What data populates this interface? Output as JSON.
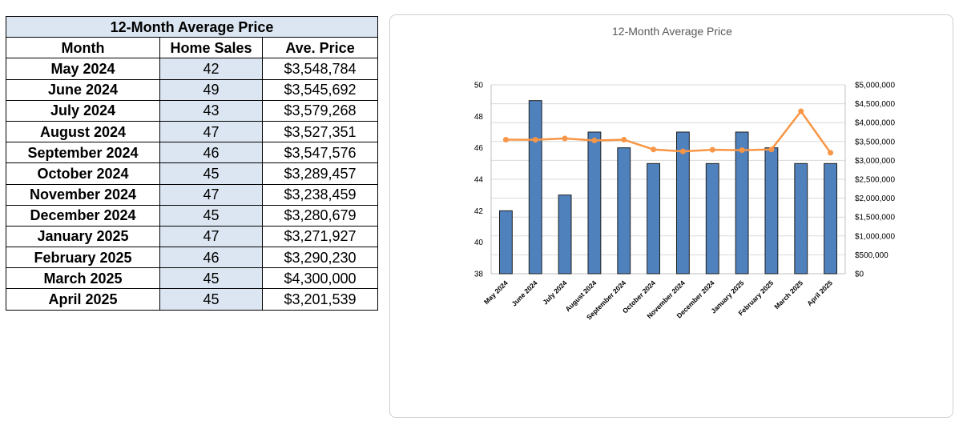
{
  "table": {
    "title": "12-Month Average Price",
    "headers": [
      "Month",
      "Home Sales",
      "Ave. Price"
    ],
    "rows": [
      {
        "month": "May 2024",
        "sales": "42",
        "price": "$3,548,784"
      },
      {
        "month": "June 2024",
        "sales": "49",
        "price": "$3,545,692"
      },
      {
        "month": "July 2024",
        "sales": "43",
        "price": "$3,579,268"
      },
      {
        "month": "August 2024",
        "sales": "47",
        "price": "$3,527,351"
      },
      {
        "month": "September 2024",
        "sales": "46",
        "price": "$3,547,576"
      },
      {
        "month": "October 2024",
        "sales": "45",
        "price": "$3,289,457"
      },
      {
        "month": "November 2024",
        "sales": "47",
        "price": "$3,238,459"
      },
      {
        "month": "December 2024",
        "sales": "45",
        "price": "$3,280,679"
      },
      {
        "month": "January 2025",
        "sales": "47",
        "price": "$3,271,927"
      },
      {
        "month": "February 2025",
        "sales": "46",
        "price": "$3,290,230"
      },
      {
        "month": "March 2025",
        "sales": "45",
        "price": "$4,300,000"
      },
      {
        "month": "April 2025",
        "sales": "45",
        "price": "$3,201,539"
      }
    ]
  },
  "chart_data": {
    "type": "bar",
    "title": "12-Month Average Price",
    "categories": [
      "May 2024",
      "June 2024",
      "July 2024",
      "August 2024",
      "September 2024",
      "October 2024",
      "November 2024",
      "December 2024",
      "January 2025",
      "February 2025",
      "March 2025",
      "April 2025"
    ],
    "series": [
      {
        "type": "bar",
        "axis": "left",
        "color": "#4f81bd",
        "values": [
          42,
          49,
          43,
          47,
          46,
          45,
          47,
          45,
          47,
          46,
          45,
          45
        ]
      },
      {
        "type": "line",
        "axis": "right",
        "color": "#f79646",
        "values": [
          3548784,
          3545692,
          3579268,
          3527351,
          3547576,
          3289457,
          3238459,
          3280679,
          3271927,
          3290230,
          4300000,
          3201539
        ]
      }
    ],
    "y_left": {
      "min": 38,
      "max": 50,
      "ticks": [
        "38",
        "40",
        "42",
        "44",
        "46",
        "48",
        "50"
      ]
    },
    "y_right": {
      "min": 0,
      "max": 5000000,
      "ticks": [
        "$0",
        "$500,000",
        "$1,000,000",
        "$1,500,000",
        "$2,000,000",
        "$2,500,000",
        "$3,000,000",
        "$3,500,000",
        "$4,000,000",
        "$4,500,000",
        "$5,000,000"
      ]
    },
    "grid": true,
    "legend": "none"
  }
}
